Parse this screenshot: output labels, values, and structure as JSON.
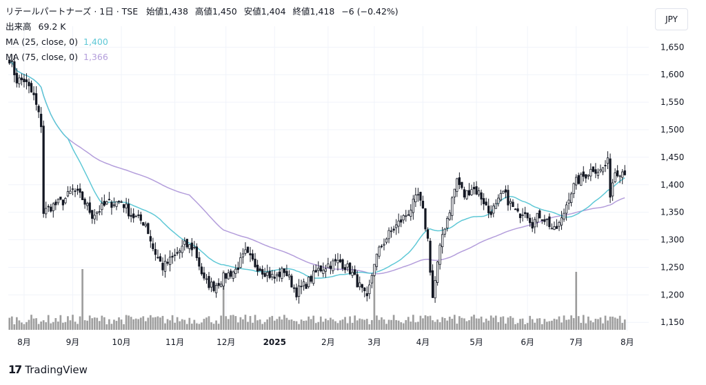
{
  "header": {
    "symbol": "リテールパートナーズ · 1日 · TSE",
    "open_label": "始値",
    "open": "1,438",
    "high_label": "高値",
    "high": "1,450",
    "low_label": "安値",
    "low": "1,404",
    "close_label": "終値",
    "close": "1,418",
    "change": "−6 (−0.42%)",
    "volume_label": "出来高",
    "volume": "69.2 K"
  },
  "indicators": [
    {
      "label": "MA (25, close, 0)",
      "value": "1,400",
      "color": "#5ec8d6"
    },
    {
      "label": "MA (75, close, 0)",
      "value": "1,366",
      "color": "#b39ddb"
    }
  ],
  "currency_button": "JPY",
  "branding": "TradingView",
  "chart_data": {
    "type": "candlestick",
    "y_ticks": [
      1150,
      1200,
      1250,
      1300,
      1350,
      1400,
      1450,
      1500,
      1550,
      1600,
      1650
    ],
    "y_tick_labels": [
      "1,150",
      "1,200",
      "1,250",
      "1,300",
      "1,350",
      "1,400",
      "1,450",
      "1,500",
      "1,550",
      "1,600",
      "1,650"
    ],
    "ylim": [
      1134,
      1688
    ],
    "x_labels": [
      "8月",
      "9月",
      "10月",
      "11月",
      "12月",
      "2025",
      "2月",
      "3月",
      "4月",
      "5月",
      "6月",
      "7月",
      "8月"
    ],
    "x_label_bars": [
      6,
      26,
      46,
      68,
      89,
      109,
      131,
      150,
      170,
      192,
      213,
      233,
      254
    ],
    "bold_labels": [
      "2025"
    ],
    "n_bars": 254,
    "keypoints": [
      [
        0,
        1630
      ],
      [
        3,
        1590
      ],
      [
        6,
        1590
      ],
      [
        10,
        1560
      ],
      [
        13,
        1510
      ],
      [
        14,
        1350
      ],
      [
        17,
        1360
      ],
      [
        22,
        1370
      ],
      [
        26,
        1390
      ],
      [
        30,
        1375
      ],
      [
        34,
        1345
      ],
      [
        40,
        1365
      ],
      [
        46,
        1370
      ],
      [
        50,
        1345
      ],
      [
        56,
        1330
      ],
      [
        59,
        1285
      ],
      [
        63,
        1250
      ],
      [
        68,
        1270
      ],
      [
        72,
        1290
      ],
      [
        76,
        1285
      ],
      [
        80,
        1225
      ],
      [
        84,
        1215
      ],
      [
        89,
        1235
      ],
      [
        93,
        1245
      ],
      [
        97,
        1275
      ],
      [
        101,
        1255
      ],
      [
        104,
        1245
      ],
      [
        109,
        1230
      ],
      [
        113,
        1245
      ],
      [
        118,
        1205
      ],
      [
        122,
        1220
      ],
      [
        127,
        1245
      ],
      [
        131,
        1255
      ],
      [
        136,
        1260
      ],
      [
        140,
        1245
      ],
      [
        144,
        1215
      ],
      [
        147,
        1190
      ],
      [
        150,
        1260
      ],
      [
        153,
        1290
      ],
      [
        156,
        1310
      ],
      [
        160,
        1330
      ],
      [
        164,
        1350
      ],
      [
        168,
        1380
      ],
      [
        170,
        1350
      ],
      [
        172,
        1300
      ],
      [
        174,
        1195
      ],
      [
        176,
        1255
      ],
      [
        178,
        1310
      ],
      [
        181,
        1355
      ],
      [
        184,
        1410
      ],
      [
        187,
        1380
      ],
      [
        190,
        1395
      ],
      [
        193,
        1385
      ],
      [
        195,
        1370
      ],
      [
        197,
        1350
      ],
      [
        200,
        1360
      ],
      [
        203,
        1385
      ],
      [
        206,
        1365
      ],
      [
        209,
        1345
      ],
      [
        212,
        1355
      ],
      [
        215,
        1330
      ],
      [
        218,
        1345
      ],
      [
        221,
        1335
      ],
      [
        224,
        1315
      ],
      [
        227,
        1335
      ],
      [
        230,
        1380
      ],
      [
        233,
        1405
      ],
      [
        236,
        1415
      ],
      [
        240,
        1430
      ],
      [
        243,
        1425
      ],
      [
        246,
        1440
      ],
      [
        247,
        1385
      ],
      [
        249,
        1425
      ]
    ],
    "volume_spikes": [
      [
        13,
        12
      ],
      [
        30,
        88
      ],
      [
        88,
        86
      ],
      [
        150,
        89
      ],
      [
        233,
        84
      ]
    ],
    "last_close": 1418
  }
}
